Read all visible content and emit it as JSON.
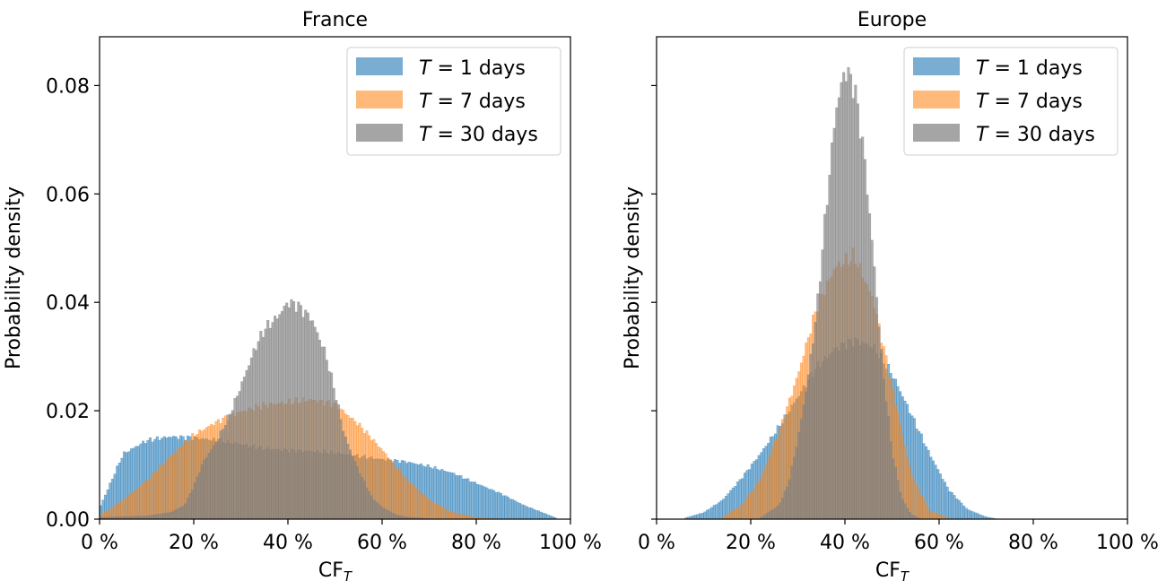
{
  "chart_data": [
    {
      "type": "histogram",
      "title": "France",
      "xlabel_main": "CF",
      "xlabel_sub": "T",
      "ylabel": "Probability density",
      "xlim": [
        0,
        100
      ],
      "ylim": [
        0,
        0.089
      ],
      "x_unit": "%",
      "xticks": [
        0,
        20,
        40,
        60,
        80,
        100
      ],
      "xtick_labels": [
        "0 %",
        "20 %",
        "40 %",
        "60 %",
        "80 %",
        "100 %"
      ],
      "yticks": [
        0,
        0.02,
        0.04,
        0.06,
        0.08
      ],
      "ytick_labels": [
        "0.00",
        "0.02",
        "0.04",
        "0.06",
        "0.08"
      ],
      "show_ytick_labels": true,
      "legend_position": "upper right",
      "series": [
        {
          "name_var": "T",
          "name_rest": " = 1 days",
          "color": "#1f77b4",
          "alpha": 0.55,
          "x": [
            0,
            5,
            10,
            15,
            20,
            25,
            30,
            35,
            40,
            45,
            50,
            55,
            60,
            65,
            70,
            75,
            80,
            85,
            90,
            95,
            97
          ],
          "density": [
            0.002,
            0.012,
            0.0145,
            0.0152,
            0.015,
            0.0145,
            0.0138,
            0.013,
            0.0127,
            0.0125,
            0.0122,
            0.0116,
            0.011,
            0.0106,
            0.0097,
            0.0085,
            0.0066,
            0.0048,
            0.0026,
            0.0009,
            0.0002
          ]
        },
        {
          "name_var": "T",
          "name_rest": " = 7 days",
          "color": "#ff7f0e",
          "alpha": 0.5,
          "x": [
            0,
            5,
            10,
            15,
            20,
            25,
            30,
            35,
            40,
            45,
            50,
            55,
            60,
            65,
            70,
            75,
            80,
            85
          ],
          "density": [
            0.0005,
            0.0035,
            0.007,
            0.0115,
            0.0155,
            0.018,
            0.0198,
            0.021,
            0.0215,
            0.022,
            0.0212,
            0.0175,
            0.0128,
            0.0075,
            0.0035,
            0.0012,
            0.0003,
            0.0
          ]
        },
        {
          "name_var": "T",
          "name_rest": " = 30 days",
          "color": "#7f7f7f",
          "alpha": 0.65,
          "x": [
            0,
            10,
            15,
            18,
            20,
            22,
            25,
            28,
            30,
            33,
            35,
            38,
            40,
            42,
            45,
            48,
            50,
            52,
            55,
            58,
            60,
            63,
            65,
            70
          ],
          "density": [
            0.0003,
            0.0006,
            0.0012,
            0.0025,
            0.006,
            0.0105,
            0.0145,
            0.02,
            0.0245,
            0.0315,
            0.035,
            0.0375,
            0.04,
            0.0395,
            0.037,
            0.0305,
            0.0235,
            0.0155,
            0.009,
            0.0038,
            0.0022,
            0.0008,
            0.0004,
            0.0001
          ]
        }
      ]
    },
    {
      "type": "histogram",
      "title": "Europe",
      "xlabel_main": "CF",
      "xlabel_sub": "T",
      "ylabel": "Probability density",
      "xlim": [
        0,
        100
      ],
      "ylim": [
        0,
        0.089
      ],
      "x_unit": "%",
      "xticks": [
        0,
        20,
        40,
        60,
        80,
        100
      ],
      "xtick_labels": [
        "0 %",
        "20 %",
        "40 %",
        "60 %",
        "80 %",
        "100 %"
      ],
      "yticks": [
        0,
        0.02,
        0.04,
        0.06,
        0.08
      ],
      "show_ytick_labels": false,
      "legend_position": "upper right",
      "series": [
        {
          "name_var": "T",
          "name_rest": " = 1 days",
          "color": "#1f77b4",
          "alpha": 0.55,
          "x": [
            6,
            10,
            14,
            18,
            22,
            26,
            30,
            34,
            38,
            42,
            46,
            50,
            54,
            58,
            62,
            66,
            70,
            72
          ],
          "density": [
            0.0002,
            0.0012,
            0.0035,
            0.0075,
            0.012,
            0.017,
            0.0225,
            0.028,
            0.0315,
            0.033,
            0.0318,
            0.0268,
            0.0195,
            0.012,
            0.0055,
            0.0018,
            0.0004,
            0.0001
          ]
        },
        {
          "name_var": "T",
          "name_rest": " = 7 days",
          "color": "#ff7f0e",
          "alpha": 0.5,
          "x": [
            14,
            18,
            22,
            26,
            30,
            34,
            38,
            42,
            46,
            50,
            54,
            58,
            62
          ],
          "density": [
            0.0003,
            0.0025,
            0.0072,
            0.016,
            0.0265,
            0.039,
            0.0465,
            0.0485,
            0.0405,
            0.0245,
            0.0085,
            0.0015,
            0.0002
          ]
        },
        {
          "name_var": "T",
          "name_rest": " = 30 days",
          "color": "#7f7f7f",
          "alpha": 0.65,
          "x": [
            22,
            26,
            28,
            30,
            32,
            34,
            36,
            38,
            40,
            42,
            44,
            46,
            48,
            50,
            52,
            54,
            56
          ],
          "density": [
            0.0002,
            0.0025,
            0.0065,
            0.0145,
            0.025,
            0.038,
            0.057,
            0.075,
            0.083,
            0.08,
            0.068,
            0.049,
            0.028,
            0.0125,
            0.004,
            0.0009,
            0.0001
          ]
        }
      ]
    }
  ]
}
